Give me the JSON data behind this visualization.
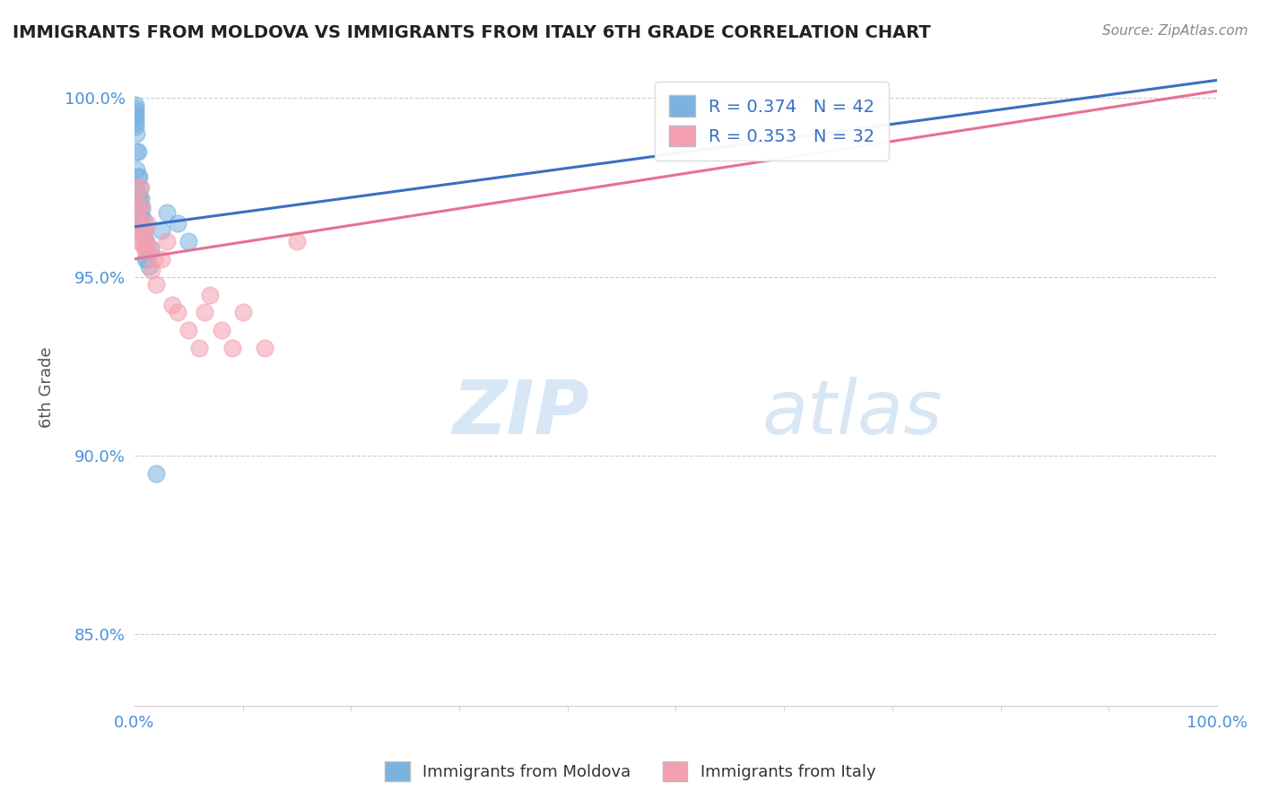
{
  "title": "IMMIGRANTS FROM MOLDOVA VS IMMIGRANTS FROM ITALY 6TH GRADE CORRELATION CHART",
  "source": "Source: ZipAtlas.com",
  "ylabel": "6th Grade",
  "xlim": [
    0.0,
    1.0
  ],
  "ylim": [
    0.83,
    1.008
  ],
  "yticks": [
    0.85,
    0.9,
    0.95,
    1.0
  ],
  "ytick_labels": [
    "85.0%",
    "90.0%",
    "95.0%",
    "100.0%"
  ],
  "moldova_color": "#7ab3e0",
  "italy_color": "#f4a0b0",
  "moldova_R": 0.374,
  "moldova_N": 42,
  "italy_R": 0.353,
  "italy_N": 32,
  "legend_label_moldova": "Immigrants from Moldova",
  "legend_label_italy": "Immigrants from Italy",
  "watermark_zip": "ZIP",
  "watermark_atlas": "atlas",
  "background_color": "#ffffff",
  "grid_color": "#cccccc",
  "title_color": "#222222",
  "axis_label_color": "#555555",
  "tick_label_color": "#4a90d9",
  "source_color": "#888888",
  "moldova_line_x": [
    0.0,
    1.0
  ],
  "moldova_line_y": [
    0.964,
    1.005
  ],
  "italy_line_x": [
    0.0,
    1.0
  ],
  "italy_line_y": [
    0.955,
    1.002
  ],
  "moldova_x": [
    0.001,
    0.001,
    0.001,
    0.001,
    0.001,
    0.001,
    0.001,
    0.001,
    0.001,
    0.002,
    0.002,
    0.002,
    0.002,
    0.002,
    0.003,
    0.003,
    0.003,
    0.003,
    0.004,
    0.004,
    0.004,
    0.005,
    0.005,
    0.005,
    0.006,
    0.006,
    0.007,
    0.007,
    0.008,
    0.008,
    0.009,
    0.01,
    0.01,
    0.011,
    0.012,
    0.013,
    0.015,
    0.02,
    0.025,
    0.03,
    0.04,
    0.05
  ],
  "moldova_y": [
    0.998,
    0.997,
    0.996,
    0.995,
    0.994,
    0.993,
    0.992,
    0.975,
    0.97,
    0.99,
    0.985,
    0.98,
    0.975,
    0.97,
    0.985,
    0.978,
    0.973,
    0.968,
    0.978,
    0.972,
    0.967,
    0.975,
    0.97,
    0.965,
    0.972,
    0.967,
    0.969,
    0.964,
    0.966,
    0.961,
    0.963,
    0.96,
    0.955,
    0.958,
    0.955,
    0.953,
    0.958,
    0.895,
    0.963,
    0.968,
    0.965,
    0.96
  ],
  "italy_x": [
    0.002,
    0.002,
    0.003,
    0.003,
    0.004,
    0.005,
    0.005,
    0.006,
    0.007,
    0.008,
    0.009,
    0.01,
    0.01,
    0.011,
    0.012,
    0.015,
    0.016,
    0.018,
    0.02,
    0.025,
    0.03,
    0.035,
    0.04,
    0.05,
    0.06,
    0.065,
    0.07,
    0.08,
    0.09,
    0.1,
    0.12,
    0.15
  ],
  "italy_y": [
    0.975,
    0.97,
    0.968,
    0.963,
    0.96,
    0.965,
    0.96,
    0.975,
    0.97,
    0.963,
    0.958,
    0.963,
    0.958,
    0.96,
    0.965,
    0.958,
    0.952,
    0.955,
    0.948,
    0.955,
    0.96,
    0.942,
    0.94,
    0.935,
    0.93,
    0.94,
    0.945,
    0.935,
    0.93,
    0.94,
    0.93,
    0.96
  ]
}
